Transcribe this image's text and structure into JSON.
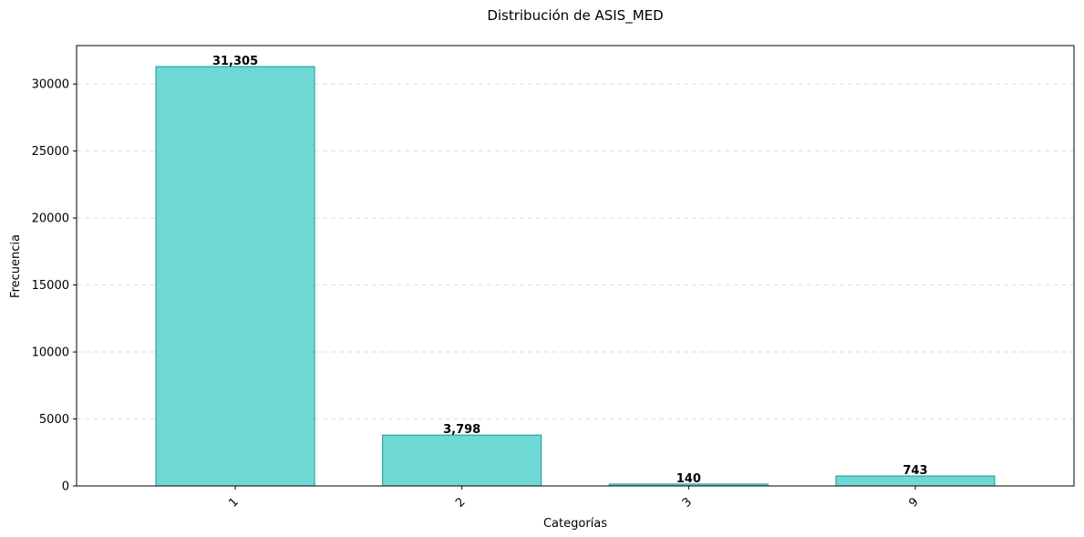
{
  "chart_data": {
    "type": "bar",
    "title": "Distribución de ASIS_MED",
    "xlabel": "Categorías",
    "ylabel": "Frecuencia",
    "categories": [
      "1",
      "2",
      "3",
      "9"
    ],
    "values": [
      31305,
      3798,
      140,
      743
    ],
    "value_labels": [
      "31,305",
      "3,798",
      "140",
      "743"
    ],
    "ylim": [
      0,
      32871
    ],
    "yticks": [
      0,
      5000,
      10000,
      15000,
      20000,
      25000,
      30000
    ],
    "ytick_labels": [
      "0",
      "5000",
      "10000",
      "15000",
      "20000",
      "25000",
      "30000"
    ],
    "xtick_rotation": 45,
    "grid": "y-dashed",
    "legend": "none",
    "colors": {
      "bar_fill": "#6ed9d4",
      "bar_edge": "#1a9a93",
      "grid": "#dddddd"
    }
  }
}
